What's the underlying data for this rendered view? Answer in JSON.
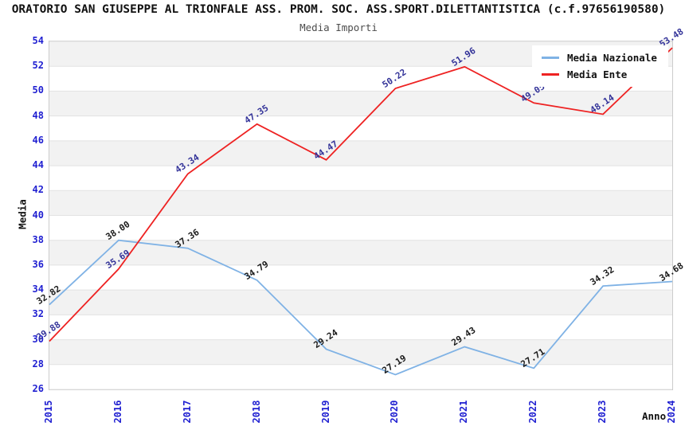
{
  "header": {
    "title": "ORATORIO SAN GIUSEPPE AL TRIONFALE ASS. PROM. SOC. ASS.SPORT.DILETTANTISTICA (c.f.97656190580)",
    "subtitle": "Media Importi"
  },
  "chart_data": {
    "type": "line",
    "title": "ORATORIO SAN GIUSEPPE AL TRIONFALE ASS. PROM. SOC. ASS.SPORT.DILETTANTISTICA (c.f.97656190580)",
    "subtitle": "Media Importi",
    "xlabel": "Anno",
    "ylabel": "Media",
    "x": [
      "2015",
      "2016",
      "2017",
      "2018",
      "2019",
      "2020",
      "2021",
      "2022",
      "2023",
      "2024"
    ],
    "ylim": [
      26,
      54
    ],
    "ytick_step": 2,
    "grid": "horizontal-bands",
    "legend_position": "top-right",
    "band_color": "#f2f2f2",
    "gridline_color": "#e2e2e2",
    "frame_color": "#cccccc",
    "tick_color": "#1f1fd1",
    "series": [
      {
        "name": "Media Nazionale",
        "color": "#7fb2e5",
        "label_color": "#1a1a1a",
        "values": [
          32.82,
          38.0,
          37.36,
          34.79,
          29.24,
          27.19,
          29.43,
          27.71,
          34.32,
          34.68
        ]
      },
      {
        "name": "Media Ente",
        "color": "#ee2222",
        "label_color": "#333399",
        "values": [
          29.88,
          35.69,
          43.34,
          47.35,
          44.47,
          50.22,
          51.96,
          49.05,
          48.14,
          53.48
        ]
      }
    ]
  }
}
